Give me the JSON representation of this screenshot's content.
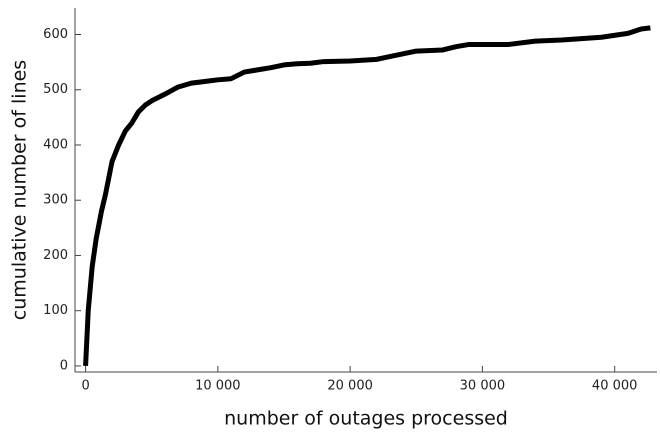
{
  "chart_data": {
    "type": "line",
    "x_label": "number of outages processed",
    "y_label": "cumulative number of lines",
    "x": [
      0,
      200,
      500,
      800,
      1200,
      1500,
      2000,
      2500,
      3000,
      3500,
      4000,
      4500,
      5000,
      6000,
      7000,
      8000,
      9000,
      10000,
      11000,
      12000,
      13000,
      14000,
      15000,
      16000,
      17000,
      18000,
      20000,
      22000,
      23000,
      24000,
      25000,
      27000,
      28000,
      29000,
      32000,
      34000,
      36000,
      39000,
      41000,
      42000,
      42700
    ],
    "series": [
      {
        "color": "#000000",
        "values": [
          0,
          100,
          180,
          230,
          280,
          310,
          370,
          400,
          425,
          440,
          460,
          472,
          480,
          492,
          505,
          512,
          515,
          518,
          520,
          532,
          536,
          540,
          545,
          547,
          548,
          551,
          552,
          555,
          560,
          565,
          570,
          572,
          578,
          582,
          582,
          588,
          590,
          595,
          602,
          610,
          612
        ]
      }
    ],
    "xlim": [
      -800,
      43200
    ],
    "ylim": [
      -11,
      648
    ],
    "xticks": [
      0,
      {
        "value": 10000,
        "label": "10 000"
      },
      {
        "value": 20000,
        "label": "20 000"
      },
      {
        "value": 30000,
        "label": "30 000"
      },
      {
        "value": 40000,
        "label": "40 000"
      }
    ],
    "yticks": [
      0,
      100,
      200,
      300,
      400,
      500,
      600
    ]
  }
}
